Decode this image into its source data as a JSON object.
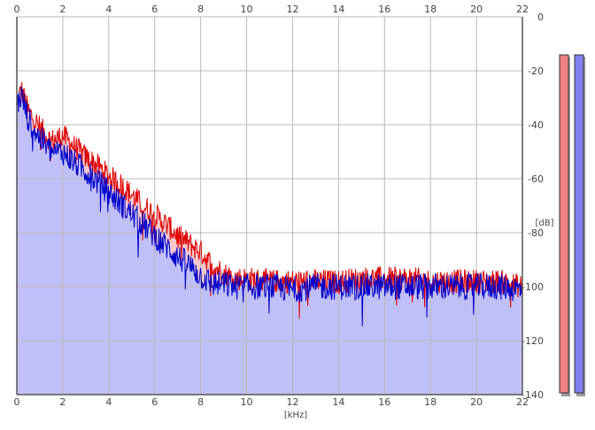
{
  "chart_data": {
    "type": "area",
    "xlabel": "[kHz]",
    "ylabel": "[dB]",
    "xlim": [
      0,
      22
    ],
    "ylim": [
      -140,
      0
    ],
    "x_ticks": [
      "0",
      "2",
      "4",
      "6",
      "8",
      "10",
      "12",
      "14",
      "16",
      "18",
      "20",
      "22"
    ],
    "y_ticks": [
      "0",
      "-20",
      "-40",
      "-60",
      "-80",
      "-100",
      "-120",
      "-140"
    ],
    "grid": true,
    "series": [
      {
        "color": "#e00000",
        "envelope": {
          "x": [
            0,
            0.2,
            0.5,
            1,
            1.5,
            2,
            2.5,
            3,
            3.5,
            4,
            4.5,
            5,
            5.5,
            6,
            6.5,
            7,
            7.5,
            8,
            8.5,
            9,
            9.5,
            10,
            11,
            12,
            13,
            14,
            15,
            16,
            17,
            18,
            19,
            20,
            21,
            22
          ],
          "y": [
            -32,
            -27,
            -35,
            -41,
            -46,
            -44,
            -48,
            -52,
            -55,
            -59,
            -62,
            -66,
            -70,
            -73,
            -77,
            -81,
            -84,
            -87,
            -92,
            -95,
            -97,
            -97,
            -98,
            -98,
            -98,
            -98,
            -97,
            -97,
            -97,
            -98,
            -98,
            -98,
            -98,
            -100
          ]
        }
      },
      {
        "color": "#0000cc",
        "envelope": {
          "x": [
            0,
            0.2,
            0.5,
            1,
            1.5,
            2,
            2.5,
            3,
            3.5,
            4,
            4.5,
            5,
            5.5,
            6,
            6.5,
            7,
            7.5,
            8,
            8.5,
            9,
            9.5,
            10,
            11,
            12,
            13,
            14,
            15,
            16,
            17,
            18,
            19,
            20,
            21,
            22
          ],
          "y": [
            -33,
            -29,
            -38,
            -45,
            -50,
            -50,
            -54,
            -57,
            -61,
            -65,
            -69,
            -73,
            -77,
            -81,
            -85,
            -89,
            -92,
            -96,
            -99,
            -99,
            -100,
            -100,
            -100,
            -101,
            -100,
            -100,
            -100,
            -100,
            -100,
            -100,
            -100,
            -100,
            -100,
            -101
          ]
        },
        "fill": "#c0c0f8"
      }
    ],
    "level_meters": [
      {
        "color": "#f08080"
      },
      {
        "color": "#8080f0"
      }
    ]
  },
  "colors": {
    "grid": "#b8b8b8",
    "axis": "#555555"
  }
}
